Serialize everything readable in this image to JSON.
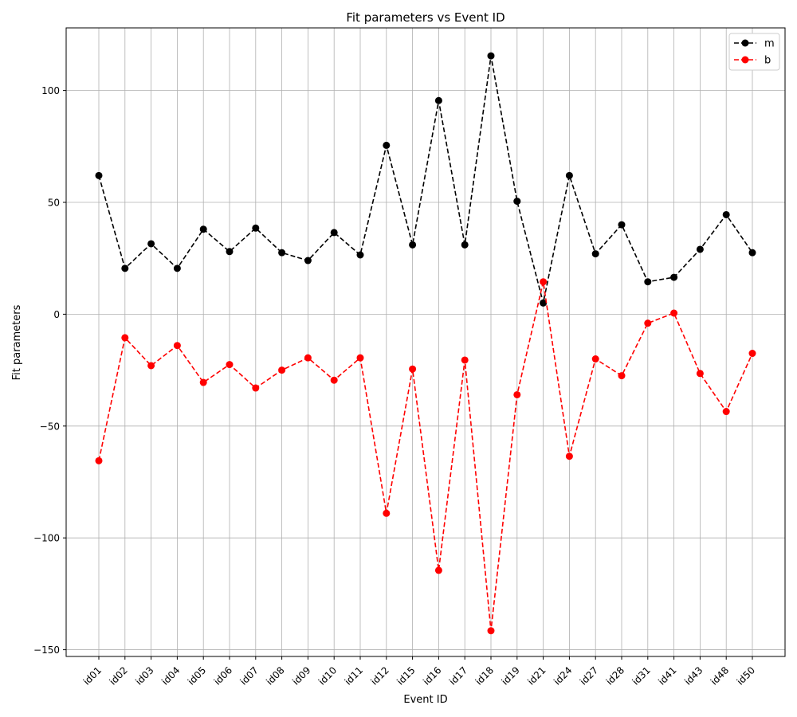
{
  "chart_data": {
    "type": "line",
    "title": "Fit parameters vs Event ID",
    "xlabel": "Event ID",
    "ylabel": "Fit parameters",
    "ylim": [
      -153,
      128
    ],
    "yticks": [
      100,
      50,
      0,
      -50,
      -100,
      -150
    ],
    "ytick_labels": [
      "100",
      "50",
      "0",
      "−50",
      "−100",
      "−150"
    ],
    "grid": true,
    "legend_position": "top-right",
    "categories": [
      "id01",
      "id02",
      "id03",
      "id04",
      "id05",
      "id06",
      "id07",
      "id08",
      "id09",
      "id10",
      "id11",
      "id12",
      "id15",
      "id16",
      "id17",
      "id18",
      "id19",
      "id21",
      "id24",
      "id27",
      "id28",
      "id31",
      "id41",
      "id43",
      "id48",
      "id50"
    ],
    "series": [
      {
        "name": "m",
        "color": "#000000",
        "line_style": "dashed",
        "marker": "circle",
        "values": [
          62,
          20.5,
          31.5,
          20.5,
          38,
          28,
          38.5,
          27.5,
          24,
          36.5,
          26.5,
          75.5,
          31,
          95.5,
          31,
          115.5,
          50.5,
          5,
          62,
          27,
          40,
          14.5,
          16.5,
          29,
          44.5,
          27.5
        ]
      },
      {
        "name": "b",
        "color": "#ff0000",
        "line_style": "dashed",
        "marker": "circle",
        "values": [
          -65.5,
          -10.5,
          -23,
          -14,
          -30.5,
          -22.5,
          -33,
          -25,
          -19.5,
          -29.5,
          -19.5,
          -89,
          -24.5,
          -114.5,
          -20.5,
          -141.5,
          -36,
          14.5,
          -63.5,
          -20,
          -27.5,
          -4,
          0.5,
          -26.5,
          -43.5,
          -17.5
        ]
      }
    ]
  }
}
